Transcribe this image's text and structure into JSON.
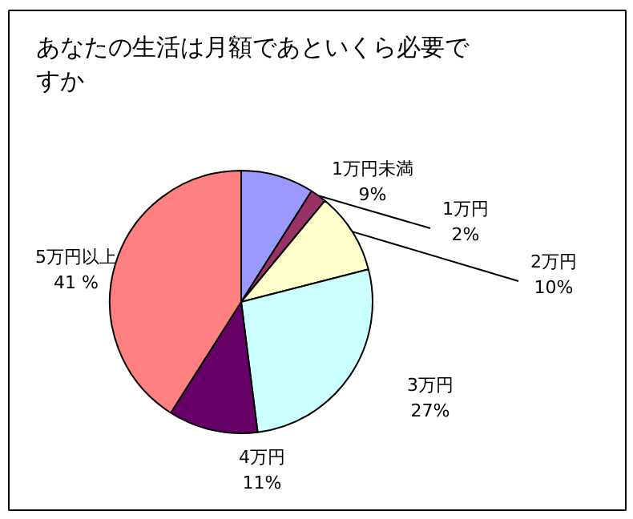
{
  "chart_data": {
    "type": "pie",
    "title": "あなたの生活は月額であといくら必要ですか",
    "categories": [
      "1万円未満",
      "1万円",
      "2万円",
      "3万円",
      "4万円",
      "5万円以上"
    ],
    "values": [
      9,
      2,
      10,
      27,
      11,
      41
    ],
    "value_labels": [
      "9%",
      "2%",
      "10%",
      "27%",
      "11%",
      "41 %"
    ],
    "colors": [
      "#9999ff",
      "#993366",
      "#ffffcc",
      "#ccffff",
      "#660066",
      "#ff8080"
    ]
  }
}
